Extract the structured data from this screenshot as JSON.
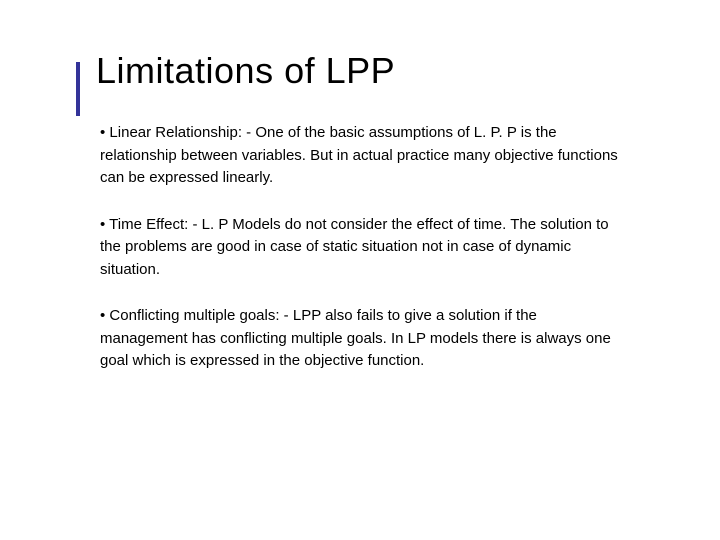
{
  "slide": {
    "title": "Limitations of LPP",
    "accent_color": "#333399",
    "title_fontsize": 36,
    "body_fontsize": 15,
    "background_color": "#ffffff",
    "text_color": "#000000",
    "bullets": [
      {
        "marker": "•",
        "text": " Linear Relationship: - One of the basic assumptions of L. P. P is the relationship between variables. But in actual practice many objective functions can be expressed linearly."
      },
      {
        "marker": "•",
        "text": " Time Effect: - L. P Models do not consider the effect of time. The solution to the problems are good in case of static situation not in case of dynamic situation."
      },
      {
        "marker": "•",
        "text": " Conflicting multiple goals: - LPP also fails to give a solution if the management has conflicting multiple goals. In LP models there is always one goal which is expressed in the objective function."
      }
    ]
  }
}
